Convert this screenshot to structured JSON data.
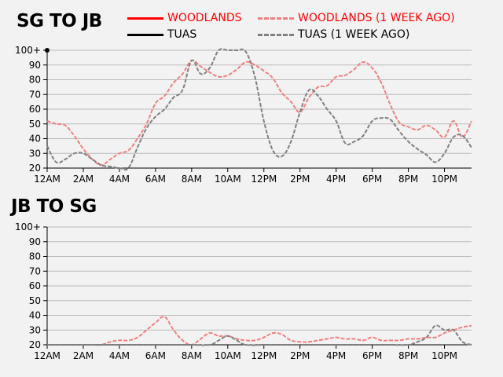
{
  "colors": {
    "woodlands": "#ff0000",
    "woodlands_week_ago": "#f08080",
    "tuas": "#000000",
    "tuas_week_ago": "#808080",
    "grid": "#bbbbbb",
    "background": "#f2f2f2"
  },
  "legend": [
    {
      "key": "woodlands",
      "label": "WOODLANDS",
      "style": "solid",
      "color": "#ff0000",
      "text_color": "#ff0000"
    },
    {
      "key": "woodlands_week_ago",
      "label": "WOODLANDS (1 WEEK AGO)",
      "style": "dashed",
      "color": "#f08080",
      "text_color": "#ff0000"
    },
    {
      "key": "tuas",
      "label": "TUAS",
      "style": "solid",
      "color": "#000000",
      "text_color": "#000000"
    },
    {
      "key": "tuas_week_ago",
      "label": "TUAS (1 WEEK AGO)",
      "style": "dashed",
      "color": "#808080",
      "text_color": "#000000"
    }
  ],
  "chart_data": [
    {
      "type": "line",
      "title": "SG TO JB",
      "x_ticks": [
        "12AM",
        "2AM",
        "4AM",
        "6AM",
        "8AM",
        "10AM",
        "12PM",
        "2PM",
        "4PM",
        "6PM",
        "8PM",
        "10PM"
      ],
      "y_ticks": [
        "20",
        "30",
        "40",
        "50",
        "60",
        "70",
        "80",
        "90",
        "100+"
      ],
      "ylim": [
        20,
        100
      ],
      "xlim": [
        0,
        23.5
      ],
      "grid": true,
      "legend_position": "top",
      "current_marker": {
        "x": 0,
        "y": 100
      },
      "series": [
        {
          "key": "woodlands_week_ago",
          "name": "WOODLANDS (1 WEEK AGO)",
          "x": [
            0,
            0.5,
            1,
            1.5,
            2,
            2.5,
            3,
            3.5,
            4,
            4.5,
            5,
            5.5,
            6,
            6.5,
            7,
            7.5,
            8,
            8.5,
            9,
            9.5,
            10,
            10.5,
            11,
            11.5,
            12,
            12.5,
            13,
            13.5,
            14,
            14.5,
            15,
            15.5,
            16,
            16.5,
            17,
            17.5,
            18,
            18.5,
            19,
            19.5,
            20,
            20.5,
            21,
            21.5,
            22,
            22.5,
            23,
            23.5
          ],
          "y": [
            52,
            50,
            49,
            42,
            33,
            26,
            22,
            26,
            30,
            32,
            40,
            50,
            64,
            69,
            78,
            84,
            93,
            89,
            85,
            82,
            83,
            87,
            92,
            90,
            86,
            81,
            71,
            65,
            58,
            68,
            75,
            76,
            82,
            83,
            87,
            92,
            88,
            78,
            63,
            51,
            48,
            46,
            49,
            46,
            41,
            52,
            41,
            52
          ]
        },
        {
          "key": "tuas_week_ago",
          "name": "TUAS (1 WEEK AGO)",
          "x": [
            0,
            0.5,
            1,
            1.5,
            2,
            2.5,
            3,
            3.5,
            4,
            4.5,
            5,
            5.5,
            6,
            6.5,
            7,
            7.5,
            8,
            8.5,
            9,
            9.5,
            10,
            10.5,
            11,
            11.5,
            12,
            12.5,
            13,
            13.5,
            14,
            14.5,
            15,
            15.5,
            16,
            16.5,
            17,
            17.5,
            18,
            18.5,
            19,
            19.5,
            20,
            20.5,
            21,
            21.5,
            22,
            22.5,
            23,
            23.5
          ],
          "y": [
            35,
            24,
            26,
            30,
            30,
            26,
            22,
            21,
            20,
            20,
            34,
            47,
            55,
            60,
            68,
            73,
            93,
            84,
            88,
            100,
            100,
            100,
            99,
            82,
            52,
            32,
            28,
            38,
            58,
            73,
            69,
            60,
            52,
            37,
            38,
            42,
            52,
            54,
            53,
            45,
            38,
            33,
            29,
            24,
            30,
            41,
            42,
            34
          ]
        },
        {
          "key": "woodlands",
          "name": "WOODLANDS",
          "x": [],
          "y": []
        },
        {
          "key": "tuas",
          "name": "TUAS",
          "x": [],
          "y": []
        }
      ]
    },
    {
      "type": "line",
      "title": "JB TO SG",
      "x_ticks": [
        "12AM",
        "2AM",
        "4AM",
        "6AM",
        "8AM",
        "10AM",
        "12PM",
        "2PM",
        "4PM",
        "6PM",
        "8PM",
        "10PM"
      ],
      "y_ticks": [
        "20",
        "30",
        "40",
        "50",
        "60",
        "70",
        "80",
        "90",
        "100+"
      ],
      "ylim": [
        20,
        100
      ],
      "xlim": [
        0,
        23.5
      ],
      "grid": true,
      "series": [
        {
          "key": "woodlands_week_ago",
          "name": "WOODLANDS (1 WEEK AGO)",
          "x": [
            0,
            0.5,
            1,
            1.5,
            2,
            2.5,
            3,
            3.5,
            4,
            4.5,
            5,
            5.5,
            6,
            6.5,
            7,
            7.5,
            8,
            8.5,
            9,
            9.5,
            10,
            10.5,
            11,
            11.5,
            12,
            12.5,
            13,
            13.5,
            14,
            14.5,
            15,
            15.5,
            16,
            16.5,
            17,
            17.5,
            18,
            18.5,
            19,
            19.5,
            20,
            20.5,
            21,
            21.5,
            22,
            22.5,
            23,
            23.5
          ],
          "y": [
            20,
            20,
            20,
            20,
            20,
            20,
            20,
            22,
            23,
            23,
            25,
            30,
            35,
            39,
            30,
            23,
            20,
            24,
            28,
            26,
            26,
            24,
            23,
            23,
            25,
            28,
            27,
            23,
            22,
            22,
            23,
            24,
            25,
            24,
            24,
            23,
            25,
            23,
            23,
            23,
            24,
            24,
            25,
            25,
            28,
            30,
            32,
            33
          ]
        },
        {
          "key": "tuas_week_ago",
          "name": "TUAS (1 WEEK AGO)",
          "x": [
            0,
            1,
            2,
            3,
            4,
            5,
            6,
            7,
            8,
            9,
            9.5,
            10,
            10.5,
            11,
            12,
            13,
            14,
            15,
            16,
            17,
            18,
            19,
            20,
            20.5,
            21,
            21.5,
            22,
            22.5,
            23,
            23.5
          ],
          "y": [
            20,
            20,
            20,
            20,
            20,
            20,
            20,
            20,
            20,
            20,
            23,
            26,
            23,
            20,
            20,
            20,
            20,
            20,
            20,
            20,
            20,
            20,
            20,
            22,
            25,
            33,
            30,
            30,
            22,
            20
          ]
        },
        {
          "key": "woodlands",
          "name": "WOODLANDS",
          "x": [],
          "y": []
        },
        {
          "key": "tuas",
          "name": "TUAS",
          "x": [],
          "y": []
        }
      ]
    }
  ]
}
